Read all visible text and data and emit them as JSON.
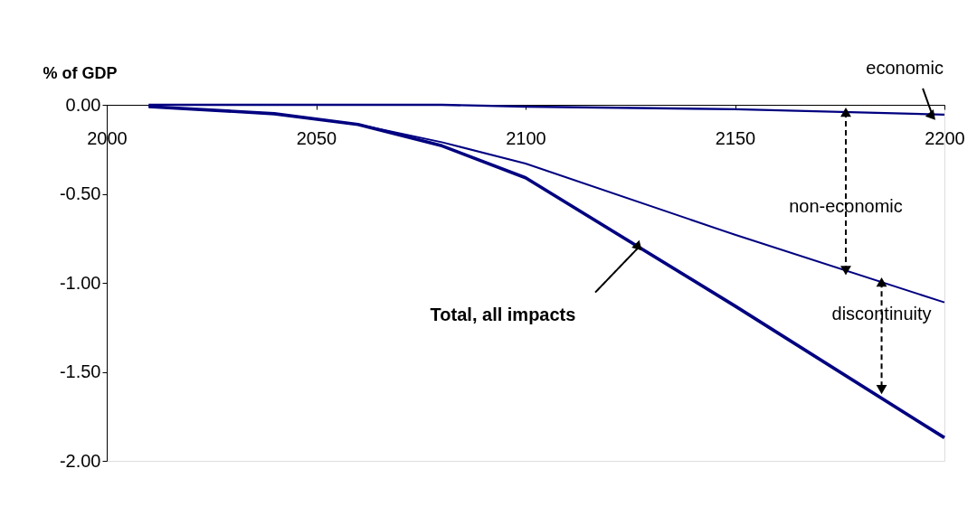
{
  "chart_data": {
    "type": "line",
    "ylabel": "% of GDP",
    "x": [
      2010,
      2040,
      2060,
      2080,
      2100,
      2150,
      2200
    ],
    "series": [
      {
        "color": "#000080",
        "values": [
          0,
          0,
          0,
          0,
          -0.01,
          -0.025,
          -0.055
        ]
      },
      {
        "color": "#000080",
        "values": [
          -0.01,
          -0.05,
          -0.11,
          -0.21,
          -0.33,
          -0.73,
          -1.11
        ]
      },
      {
        "color": "#000080",
        "values": [
          -0.01,
          -0.05,
          -0.11,
          -0.23,
          -0.41,
          -1.13,
          -1.87
        ]
      }
    ],
    "xlim": [
      2000,
      2200
    ],
    "xticks": [
      2000,
      2050,
      2100,
      2150,
      2200
    ],
    "ylim": [
      -2,
      0
    ],
    "yticks": [
      {
        "value": 0,
        "label": "0.00"
      },
      {
        "value": -0.5,
        "label": "-0.50"
      },
      {
        "value": -1,
        "label": "-1.00"
      },
      {
        "value": -1.5,
        "label": "-1.50"
      },
      {
        "value": -2,
        "label": "-2.00"
      }
    ],
    "annotations": [
      {
        "text": "economic",
        "x": 2197,
        "y": -0.05
      },
      "non-economic",
      {
        "text": "discontinuity",
        "x": 2185,
        "y": -1.6
      },
      {
        "text": "Total, all impacts",
        "x": 2127,
        "y": -0.8
      }
    ],
    "grid": false,
    "marker": "none",
    "line_style": "solid"
  }
}
